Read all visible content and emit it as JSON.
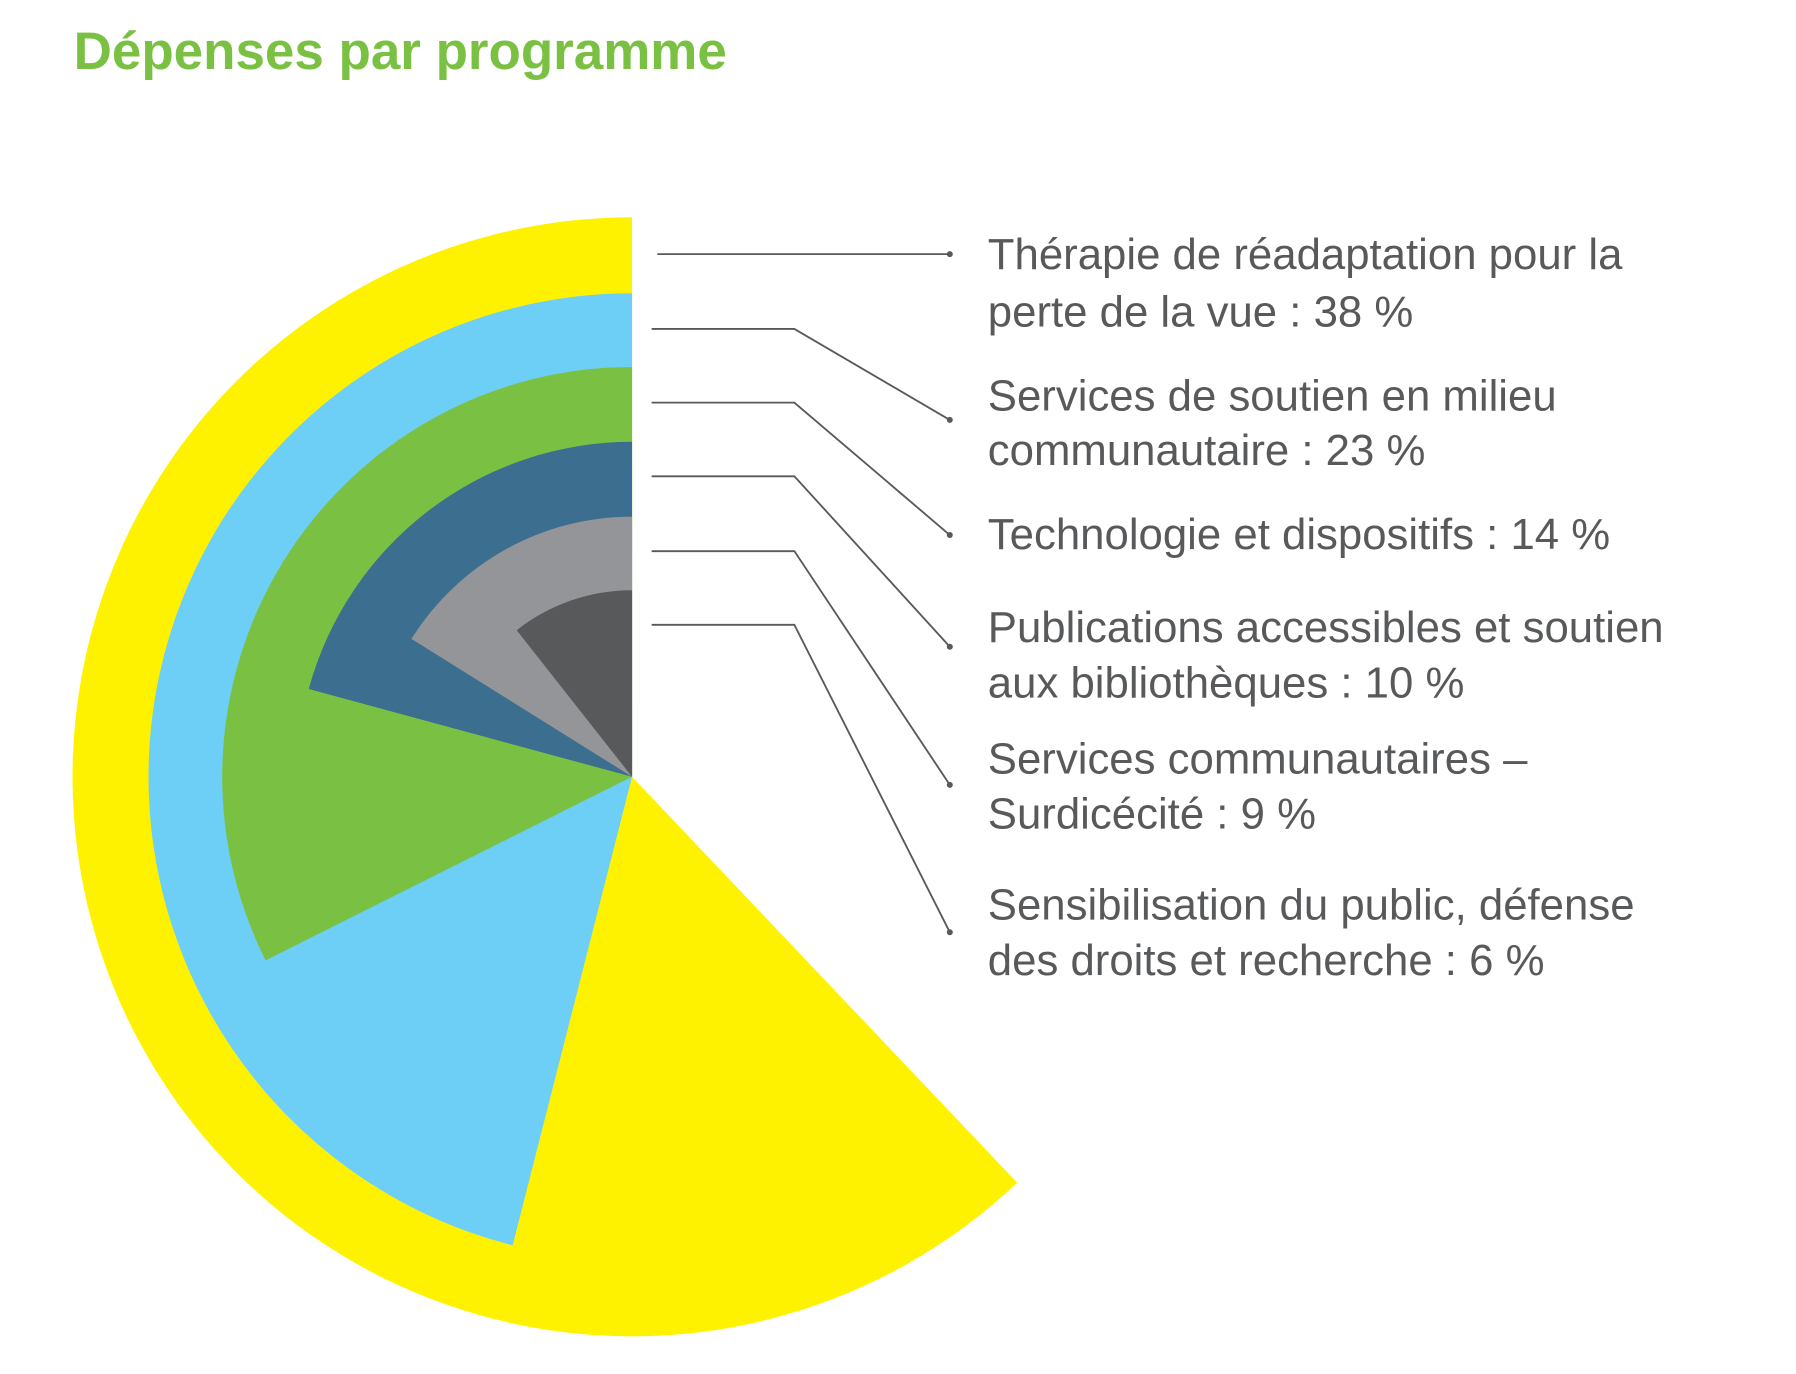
{
  "chart_data": {
    "type": "pie",
    "title": "Dépenses par programme",
    "categories": [
      [
        "Thérapie de réadaptation pour la",
        "perte de la vue : 38 %"
      ],
      [
        "Services de soutien en milieu",
        "communautaire : 23 %"
      ],
      [
        "Technologie et dispositifs : 14 %"
      ],
      [
        "Publications accessibles et soutien",
        "aux bibliothèques : 10 %"
      ],
      [
        "Services communautaires –",
        "Surdicécité : 9 %"
      ],
      [
        "Sensibilisation du public, défense",
        "des droits et recherche : 6 %"
      ]
    ],
    "values": [
      38,
      23,
      14,
      10,
      9,
      6
    ],
    "unit": "%",
    "colors": [
      "#fff200",
      "#6dcff6",
      "#7ac143",
      "#3b6e8f",
      "#939598",
      "#58595b"
    ],
    "title_color": "#7ac143",
    "text_color": "#58595b"
  }
}
